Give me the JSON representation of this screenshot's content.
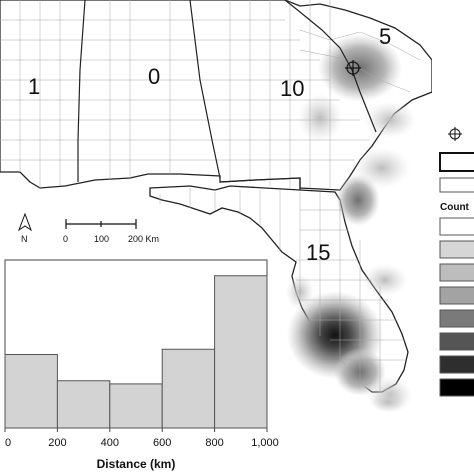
{
  "map": {
    "region_labels": [
      {
        "id": "state-1",
        "text": "1"
      },
      {
        "id": "state-0",
        "text": "0"
      },
      {
        "id": "state-10",
        "text": "10"
      },
      {
        "id": "state-5",
        "text": "5"
      },
      {
        "id": "state-15",
        "text": "15"
      }
    ],
    "north_arrow_label": "N",
    "scale_bar": {
      "ticks": [
        "0",
        "100",
        "200 Km"
      ]
    },
    "legend": {
      "title": "Count",
      "swatch_fills": [
        "#ffffff",
        "#d6d6d6",
        "#bdbdbd",
        "#a3a3a3",
        "#7a7a7a",
        "#555555",
        "#2e2e2e",
        "#000000"
      ]
    },
    "colors": {
      "land": "#ffffff",
      "border": "#222222",
      "county_line": "#9a9a9a",
      "density_dark": "#1a1a1a",
      "density_light": "#d9d9d9"
    }
  },
  "chart_data": {
    "type": "bar",
    "title": "",
    "xlabel": "Distance (km)",
    "ylabel": "",
    "x_ticks": [
      "0",
      "200",
      "400",
      "600",
      "800",
      "1,000"
    ],
    "bins": [
      [
        0,
        200
      ],
      [
        200,
        400
      ],
      [
        400,
        600
      ],
      [
        600,
        800
      ],
      [
        800,
        1000
      ]
    ],
    "values": [
      7,
      4.5,
      4.2,
      7.5,
      14.5
    ],
    "xlim": [
      0,
      1000
    ],
    "ylim": [
      0,
      16
    ],
    "bar_color": "#d3d3d3"
  }
}
